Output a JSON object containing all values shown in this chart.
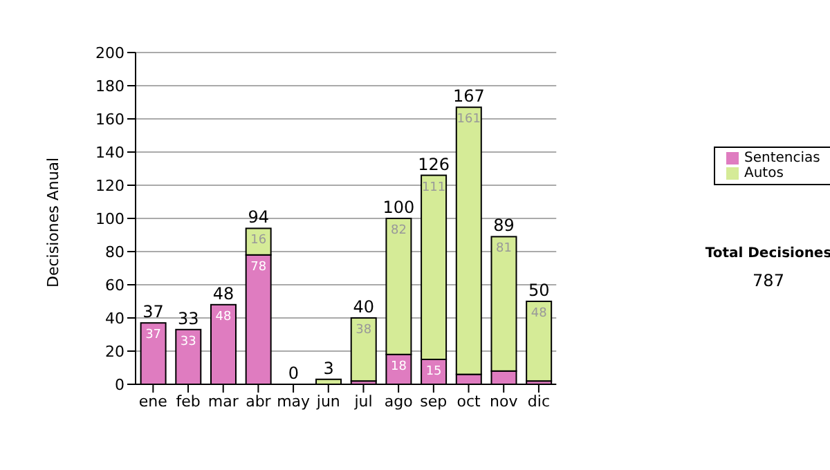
{
  "chart_data": {
    "type": "bar",
    "ylabel": "Decisiones Anual",
    "categories": [
      "ene",
      "feb",
      "mar",
      "abr",
      "may",
      "jun",
      "jul",
      "ago",
      "sep",
      "oct",
      "nov",
      "dic"
    ],
    "stacked": true,
    "series": [
      {
        "name": "Sentencias",
        "color": "#df7cc0",
        "values": [
          37,
          33,
          48,
          78,
          0,
          0,
          2,
          18,
          15,
          6,
          8,
          2
        ],
        "value_labels": [
          "37",
          "33",
          "48",
          "78",
          null,
          null,
          null,
          "18",
          "15",
          null,
          null,
          null
        ]
      },
      {
        "name": "Autos",
        "color": "#d5eb97",
        "values": [
          0,
          0,
          0,
          16,
          0,
          3,
          38,
          82,
          111,
          161,
          81,
          48
        ],
        "value_labels": [
          null,
          null,
          null,
          "16",
          null,
          null,
          "38",
          "82",
          "111",
          "161",
          "81",
          "48"
        ]
      }
    ],
    "totals": [
      "37",
      "33",
      "48",
      "94",
      "0",
      "3",
      "40",
      "100",
      "126",
      "167",
      "89",
      "50"
    ],
    "ylim": [
      0,
      200
    ],
    "yticks": [
      0,
      20,
      40,
      60,
      80,
      100,
      120,
      140,
      160,
      180,
      200
    ],
    "grid": "y",
    "legend": "right",
    "annotations": [
      "Total Decisiones",
      "787"
    ]
  }
}
